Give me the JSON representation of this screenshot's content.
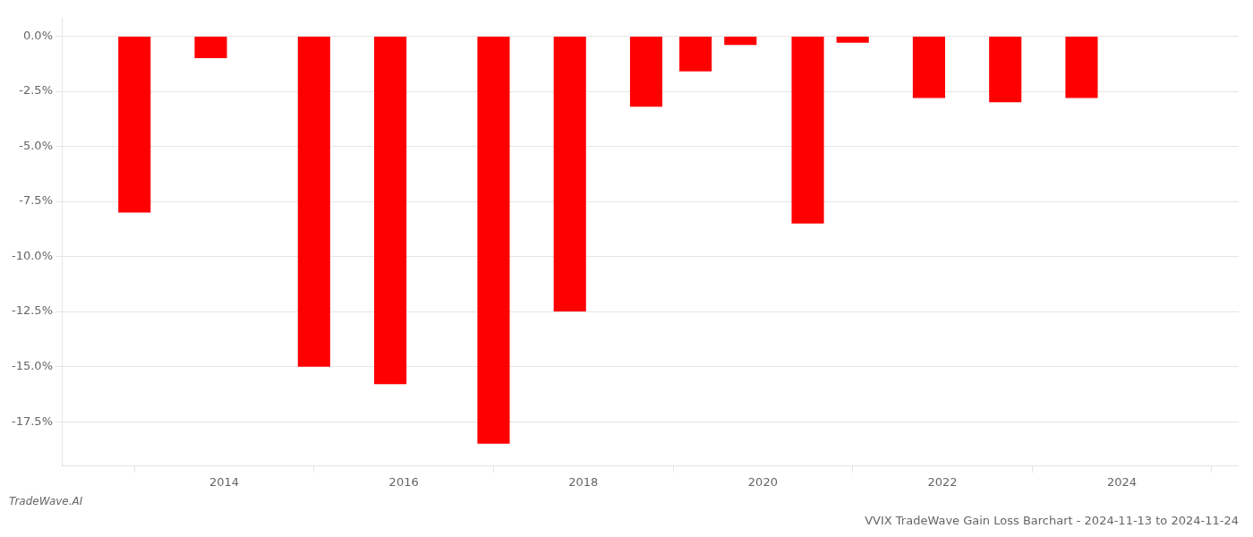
{
  "chart_data": {
    "type": "bar",
    "title": "VVIX TradeWave Gain Loss Barchart - 2024-11-13 to 2024-11-24",
    "annotations": [
      "TradeWave.AI"
    ],
    "x": [
      2013.0,
      2013.85,
      2015.0,
      2015.85,
      2017.0,
      2017.85,
      2018.7,
      2019.25,
      2019.75,
      2020.5,
      2021.0,
      2021.85,
      2022.7,
      2023.55
    ],
    "values": [
      -8.0,
      -1.0,
      -15.0,
      -15.8,
      -18.5,
      -12.5,
      -3.2,
      -1.6,
      -0.4,
      -8.5,
      -0.3,
      -2.8,
      -3.0,
      -2.8
    ],
    "color": "#ff0000",
    "xlim": [
      2012.2,
      2025.3
    ],
    "xticks": [
      2014,
      2016,
      2018,
      2020,
      2022,
      2024
    ],
    "ylim": [
      -19.5,
      0.8
    ],
    "yticks": [
      {
        "value": 0.0,
        "label": "0.0%"
      },
      {
        "value": -2.5,
        "label": "-2.5%"
      },
      {
        "value": -5.0,
        "label": "-5.0%"
      },
      {
        "value": -7.5,
        "label": "-7.5%"
      },
      {
        "value": -10.0,
        "label": "-10.0%"
      },
      {
        "value": -12.5,
        "label": "-12.5%"
      },
      {
        "value": -15.0,
        "label": "-15.0%"
      },
      {
        "value": -17.5,
        "label": "-17.5%"
      }
    ],
    "grid": true
  }
}
